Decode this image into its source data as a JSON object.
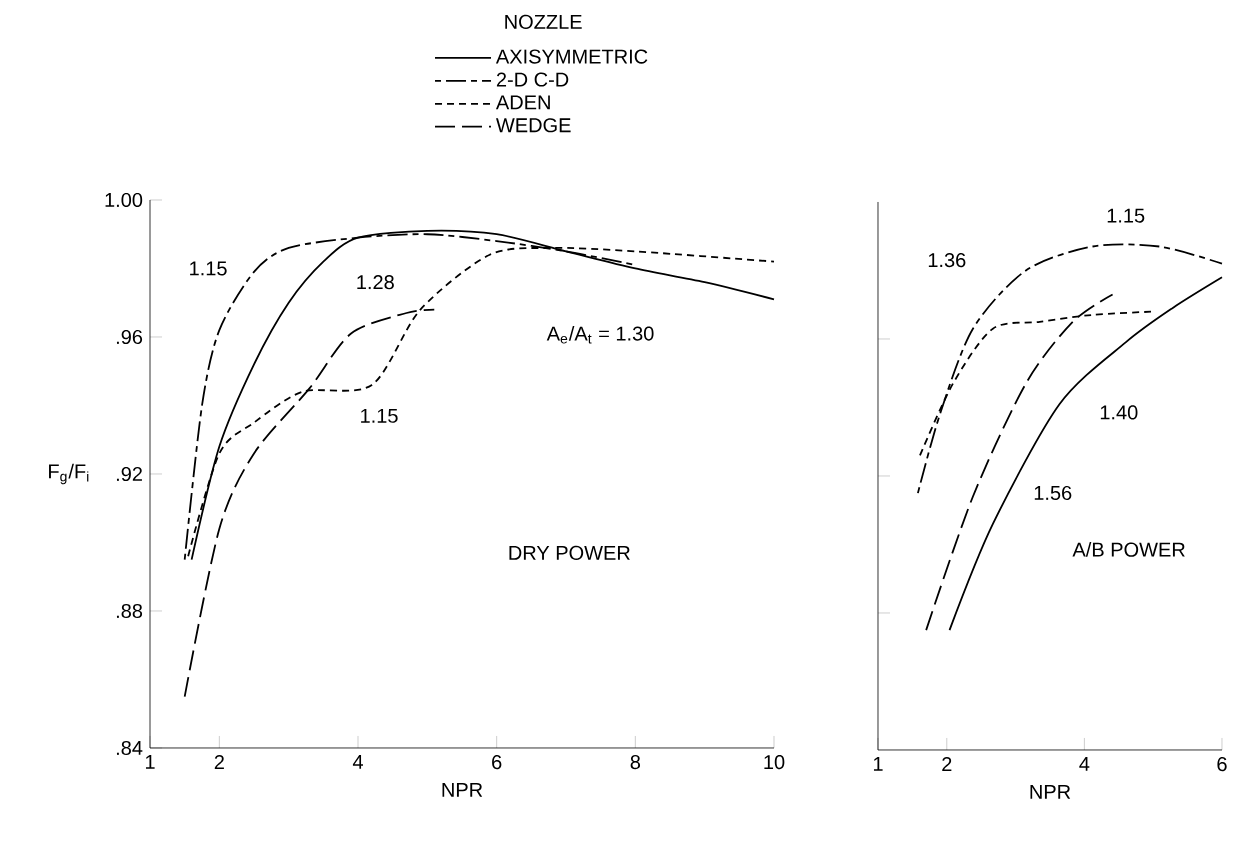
{
  "chart_data": [
    {
      "type": "line",
      "xlabel": "NPR",
      "ylabel": "F$_{g}$/F$_{i}$",
      "legend_title": "NOZZLE",
      "legend": "top",
      "xlim": [
        1,
        10
      ],
      "ylim": [
        0.84,
        1.0
      ],
      "xticks": [
        1,
        2,
        4,
        6,
        8,
        10
      ],
      "yticks": [
        {
          "value": 0.84,
          "label": ".84"
        },
        {
          "value": 0.88,
          "label": ".88"
        },
        {
          "value": 0.92,
          "label": ".92"
        },
        {
          "value": 0.96,
          "label": ".96"
        },
        {
          "value": 1.0,
          "label": "1.00"
        }
      ],
      "series": [
        {
          "name": "AXISYMMETRIC",
          "color": "#000000",
          "line_style": "solid",
          "x": [
            1.6,
            2,
            2.5,
            3,
            3.5,
            4,
            5,
            6,
            7,
            8,
            9,
            10
          ],
          "values": [
            0.895,
            0.928,
            0.952,
            0.97,
            0.982,
            0.989,
            0.991,
            0.99,
            0.985,
            0.98,
            0.976,
            0.971
          ]
        },
        {
          "name": "2-D C-D",
          "color": "#000000",
          "line_style": "dashdot",
          "x": [
            1.5,
            1.75,
            2,
            2.5,
            3,
            4,
            5,
            6,
            7,
            8
          ],
          "values": [
            0.895,
            0.94,
            0.962,
            0.979,
            0.986,
            0.989,
            0.99,
            0.988,
            0.985,
            0.981
          ]
        },
        {
          "name": "ADEN",
          "color": "#000000",
          "line_style": "dashed",
          "x": [
            1.55,
            2,
            2.5,
            3.2,
            4.2,
            4.9,
            5.9,
            6.8,
            8,
            10
          ],
          "values": [
            0.896,
            0.926,
            0.935,
            0.944,
            0.946,
            0.968,
            0.984,
            0.986,
            0.985,
            0.982
          ]
        },
        {
          "name": "WEDGE",
          "color": "#000000",
          "line_style": "longdash",
          "x": [
            1.5,
            2,
            2.5,
            3.3,
            3.9,
            4.7,
            5.1
          ],
          "values": [
            0.855,
            0.904,
            0.926,
            0.945,
            0.961,
            0.967,
            0.968
          ]
        }
      ],
      "annotations": [
        "1.15",
        "1.28",
        "A$_{e}$/A$_{t}$ = 1.30",
        "1.15",
        "DRY POWER"
      ]
    },
    {
      "type": "line",
      "xlabel": "NPR",
      "xlim": [
        1,
        6
      ],
      "ylim": [
        0.84,
        1.0
      ],
      "xticks": [
        1,
        2,
        4,
        6
      ],
      "tick_labels": "x",
      "yticks": [
        {
          "value": 0.88,
          "label": null
        },
        {
          "value": 0.92,
          "label": null
        },
        {
          "value": 0.96,
          "label": null
        }
      ],
      "series": [
        {
          "color": "#000000",
          "line_style": "solid",
          "x": [
            2.04,
            2.67,
            3.64,
            4.6,
            5.28,
            6.0
          ],
          "values": [
            0.875,
            0.906,
            0.941,
            0.959,
            0.969,
            0.978
          ]
        },
        {
          "color": "#000000",
          "line_style": "dashdot",
          "x": [
            1.58,
            1.9,
            2.38,
            3.15,
            4.12,
            5.09,
            6.0
          ],
          "values": [
            0.915,
            0.938,
            0.963,
            0.98,
            0.987,
            0.987,
            0.982
          ]
        },
        {
          "color": "#000000",
          "line_style": "dashed",
          "x": [
            1.61,
            2.09,
            2.67,
            3.35,
            4.1,
            5.0
          ],
          "values": [
            0.926,
            0.947,
            0.963,
            0.965,
            0.967,
            0.968
          ]
        },
        {
          "color": "#000000",
          "line_style": "longdash",
          "x": [
            1.7,
            2.38,
            3.15,
            3.83,
            4.41
          ],
          "values": [
            0.875,
            0.914,
            0.947,
            0.965,
            0.973
          ]
        }
      ],
      "annotations": [
        "1.15",
        "1.36",
        "1.40",
        "1.56",
        "A/B POWER"
      ]
    }
  ]
}
